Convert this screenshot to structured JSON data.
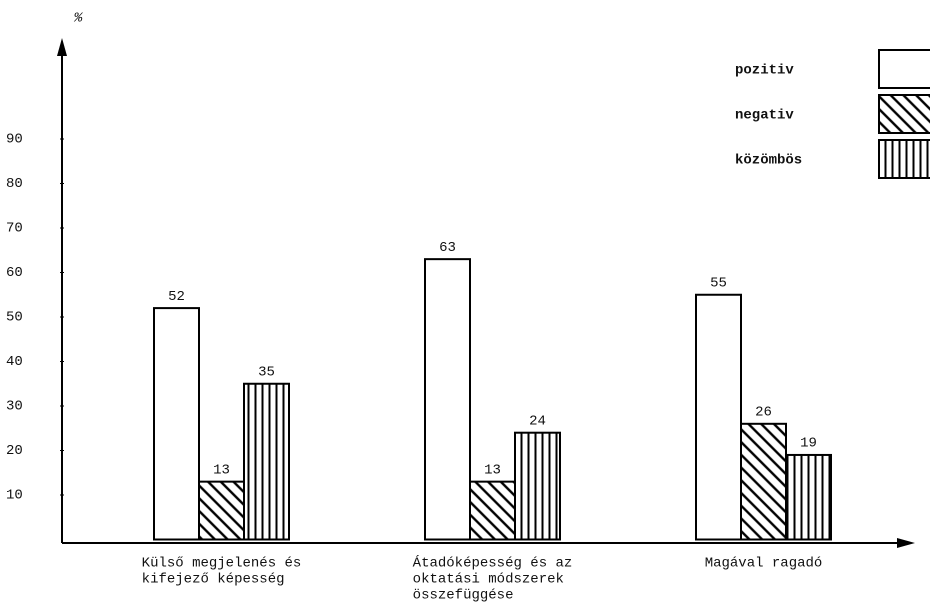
{
  "chart_data": {
    "type": "bar",
    "y_axis_label": "%",
    "categories": [
      [
        "Külső megjelenés és",
        "kifejező képesség"
      ],
      [
        "Átadóképesség és az",
        "oktatási módszerek",
        "összefüggése"
      ],
      [
        "Magával ragadó"
      ]
    ],
    "series": [
      {
        "name": "pozitiv",
        "color": "#000000",
        "pattern": "none",
        "values": [
          52,
          63,
          55
        ]
      },
      {
        "name": "negativ",
        "color": "#000000",
        "pattern": "diagonal",
        "values": [
          13,
          13,
          26
        ]
      },
      {
        "name": "közömbös",
        "color": "#000000",
        "pattern": "vertical",
        "values": [
          35,
          24,
          19
        ]
      }
    ],
    "ylim": [
      0,
      100
    ],
    "yticks": [
      10,
      20,
      30,
      40,
      50,
      60,
      70,
      80,
      90
    ],
    "grid": false,
    "legend": "top-right"
  }
}
